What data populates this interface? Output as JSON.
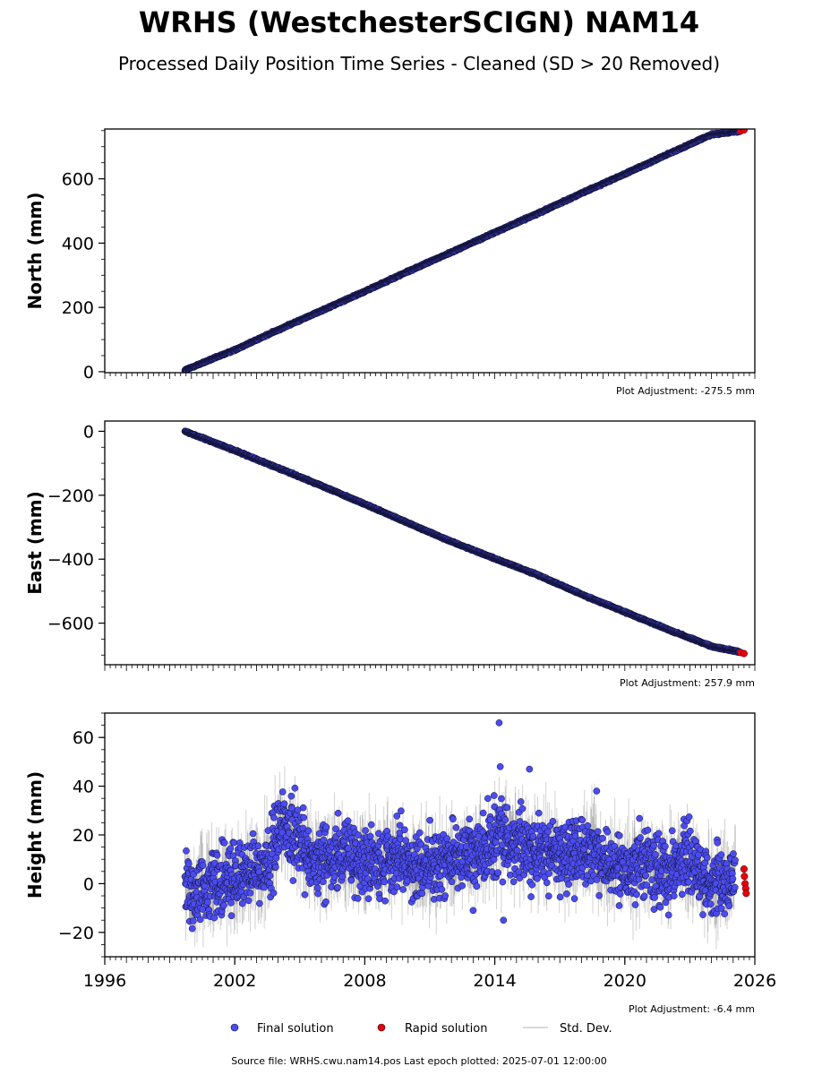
{
  "figure": {
    "title": "WRHS (WestchesterSCIGN) NAM14",
    "subtitle": "Processed Daily Position Time Series - Cleaned (SD > 20 Removed)",
    "source": "Source file: WRHS.cwu.nam14.pos  Last epoch plotted: 2025-07-01 12:00:00"
  },
  "legend": {
    "final": "Final solution",
    "rapid": "Rapid solution",
    "std": "Std. Dev."
  },
  "colors": {
    "final": "#4b4cf0",
    "final_edge": "#111133",
    "rapid": "#e8000b",
    "std": "#000000"
  },
  "chart_data": [
    {
      "type": "scatter",
      "ylabel": "North (mm)",
      "adjustment": "Plot Adjustment: -275.5 mm",
      "xlim": [
        1996,
        2026
      ],
      "ylim": [
        -3,
        755
      ],
      "yticks": [
        0,
        200,
        400,
        600
      ],
      "yticklabels": [
        "0",
        "200",
        "400",
        "600"
      ],
      "series": [
        {
          "name": "Final solution",
          "x": [
            1999.7,
            2002,
            2004,
            2006,
            2008,
            2010,
            2012,
            2014,
            2016,
            2018,
            2020,
            2022,
            2024,
            2025.3
          ],
          "y": [
            5,
            68,
            130,
            190,
            250,
            312,
            372,
            433,
            493,
            555,
            615,
            677,
            738,
            748
          ]
        },
        {
          "name": "Rapid solution",
          "x": [
            2025.35,
            2025.5
          ],
          "y": [
            749,
            752
          ]
        }
      ]
    },
    {
      "type": "scatter",
      "ylabel": "East (mm)",
      "adjustment": "Plot Adjustment: 257.9 mm",
      "xlim": [
        1996,
        2026
      ],
      "ylim": [
        -730,
        32
      ],
      "yticks": [
        0,
        -200,
        -400,
        -600
      ],
      "yticklabels": [
        "0",
        "−200",
        "−400",
        "−600"
      ],
      "series": [
        {
          "name": "Final solution",
          "x": [
            1999.7,
            2002,
            2004,
            2006,
            2008,
            2010,
            2012,
            2014,
            2016,
            2018,
            2020,
            2022,
            2024,
            2025.3
          ],
          "y": [
            0,
            -60,
            -115,
            -170,
            -228,
            -287,
            -345,
            -398,
            -450,
            -510,
            -565,
            -620,
            -673,
            -690
          ]
        },
        {
          "name": "Rapid solution",
          "x": [
            2025.35,
            2025.5
          ],
          "y": [
            -692,
            -695
          ]
        }
      ]
    },
    {
      "type": "scatter",
      "ylabel": "Height (mm)",
      "adjustment": "Plot Adjustment: -6.4 mm",
      "xlim": [
        1996,
        2026
      ],
      "ylim": [
        -30,
        70
      ],
      "yticks": [
        60,
        40,
        20,
        0,
        -20
      ],
      "yticklabels": [
        "60",
        "40",
        "20",
        "0",
        "−20"
      ],
      "xticks": [
        1996,
        2002,
        2008,
        2014,
        2020,
        2026
      ],
      "xticklabels": [
        "1996",
        "2002",
        "2008",
        "2014",
        "2020",
        "2026"
      ],
      "series": [
        {
          "name": "Final solution",
          "x": [
            1999.7,
            2000.5,
            2001.5,
            2002.5,
            2003.5,
            2004.2,
            2004.8,
            2005.5,
            2006.5,
            2007.5,
            2008.5,
            2009.5,
            2010.5,
            2011.5,
            2012.5,
            2013.5,
            2014.2,
            2014.8,
            2015.5,
            2016.5,
            2017.5,
            2018.5,
            2019.2,
            2020,
            2021,
            2022,
            2022.8,
            2023.5,
            2024.3,
            2025.1
          ],
          "y": [
            0,
            -3,
            2,
            4,
            8,
            25,
            18,
            10,
            12,
            9,
            8,
            10,
            6,
            9,
            11,
            13,
            20,
            18,
            15,
            12,
            10,
            14,
            8,
            7,
            9,
            5,
            12,
            2,
            0,
            3
          ]
        },
        {
          "name": "Rapid solution",
          "x": [
            2025.5,
            2025.52,
            2025.55,
            2025.58,
            2025.6
          ],
          "y": [
            6,
            3,
            0,
            -2,
            -4
          ]
        }
      ],
      "outliers": {
        "x": [
          2014.2,
          2014.25,
          2015.6,
          2018.7,
          2013.0,
          2014.4
        ],
        "y": [
          66,
          48,
          47,
          38,
          -11,
          -15
        ]
      }
    }
  ]
}
